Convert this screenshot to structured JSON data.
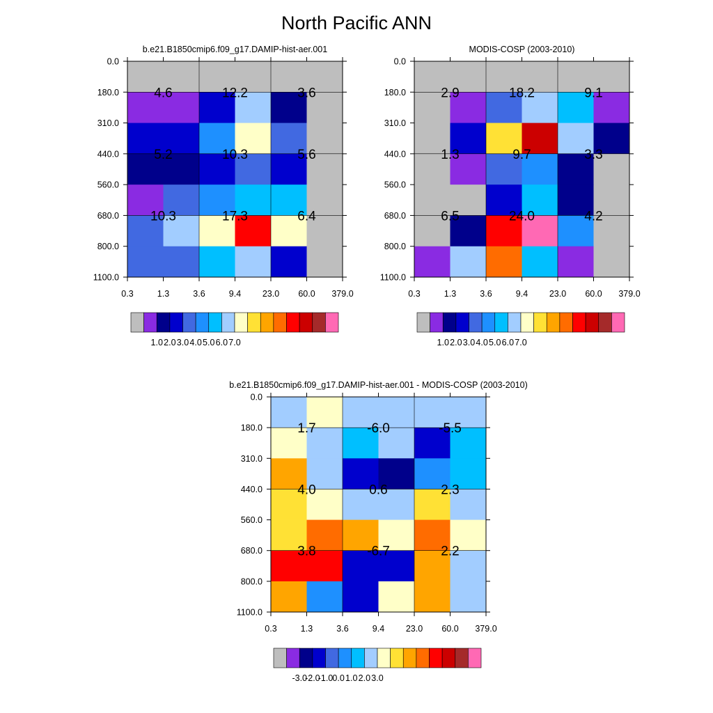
{
  "title": "North Pacific ANN",
  "palette": [
    "#bebebe",
    "#8a2be2",
    "#00008b",
    "#0000cd",
    "#4169e1",
    "#1e90ff",
    "#00bfff",
    "#a2cdff",
    "#ffffc8",
    "#ffe135",
    "#ffa500",
    "#ff6c00",
    "#ff0000",
    "#cc0000",
    "#a52a2a",
    "#ff69b4"
  ],
  "chart_data": [
    {
      "type": "heatmap",
      "title": "b.e21.B1850cmip6.f09_g17.DAMIP-hist-aer.001",
      "x_ticks": [
        "0.3",
        "1.3",
        "3.6",
        "9.4",
        "23.0",
        "60.0",
        "379.0"
      ],
      "y_ticks": [
        "0.0",
        "180.0",
        "310.0",
        "440.0",
        "560.0",
        "680.0",
        "800.0",
        "1100.0"
      ],
      "cell_colors": [
        [
          0,
          0,
          0,
          0,
          0,
          0
        ],
        [
          1,
          1,
          3,
          7,
          2,
          0
        ],
        [
          3,
          3,
          5,
          8,
          4,
          0
        ],
        [
          2,
          2,
          3,
          4,
          3,
          0
        ],
        [
          1,
          4,
          5,
          6,
          6,
          0
        ],
        [
          4,
          7,
          8,
          12,
          8,
          0
        ],
        [
          4,
          4,
          6,
          7,
          3,
          0
        ]
      ],
      "block_totals": [
        {
          "row": 1,
          "col": 0,
          "value": "4.6"
        },
        {
          "row": 1,
          "col": 1,
          "value": "12.2"
        },
        {
          "row": 1,
          "col": 2,
          "value": "3.6"
        },
        {
          "row": 3,
          "col": 0,
          "value": "5.2"
        },
        {
          "row": 3,
          "col": 1,
          "value": "10.3"
        },
        {
          "row": 3,
          "col": 2,
          "value": "5.6"
        },
        {
          "row": 5,
          "col": 0,
          "value": "10.3"
        },
        {
          "row": 5,
          "col": 1,
          "value": "17.3"
        },
        {
          "row": 5,
          "col": 2,
          "value": "6.4"
        }
      ],
      "colorbar": {
        "colors": [
          "#bebebe",
          "#8a2be2",
          "#00008b",
          "#0000cd",
          "#4169e1",
          "#1e90ff",
          "#00bfff",
          "#a2cdff",
          "#ffffc8",
          "#ffe135",
          "#ffa500",
          "#ff6c00",
          "#ff0000",
          "#cc0000",
          "#a52a2a",
          "#ff69b4"
        ],
        "labels": [
          "1.0",
          "2.0",
          "3.0",
          "4.0",
          "5.0",
          "6.0",
          "7.0"
        ]
      }
    },
    {
      "type": "heatmap",
      "title": "MODIS-COSP (2003-2010)",
      "x_ticks": [
        "0.3",
        "1.3",
        "3.6",
        "9.4",
        "23.0",
        "60.0",
        "379.0"
      ],
      "y_ticks": [
        "0.0",
        "180.0",
        "310.0",
        "440.0",
        "560.0",
        "680.0",
        "800.0",
        "1100.0"
      ],
      "cell_colors": [
        [
          0,
          0,
          0,
          0,
          0,
          0
        ],
        [
          0,
          1,
          4,
          7,
          6,
          1
        ],
        [
          0,
          3,
          9,
          13,
          7,
          2
        ],
        [
          0,
          1,
          4,
          5,
          2,
          0
        ],
        [
          0,
          0,
          3,
          6,
          2,
          0
        ],
        [
          0,
          2,
          12,
          15,
          5,
          0
        ],
        [
          1,
          7,
          11,
          6,
          1,
          0
        ]
      ],
      "block_totals": [
        {
          "row": 1,
          "col": 0,
          "value": "2.9"
        },
        {
          "row": 1,
          "col": 1,
          "value": "18.2"
        },
        {
          "row": 1,
          "col": 2,
          "value": "9.1"
        },
        {
          "row": 3,
          "col": 0,
          "value": "1.3"
        },
        {
          "row": 3,
          "col": 1,
          "value": "9.7"
        },
        {
          "row": 3,
          "col": 2,
          "value": "3.3"
        },
        {
          "row": 5,
          "col": 0,
          "value": "6.5"
        },
        {
          "row": 5,
          "col": 1,
          "value": "24.0"
        },
        {
          "row": 5,
          "col": 2,
          "value": "4.2"
        }
      ],
      "colorbar": {
        "colors": [
          "#bebebe",
          "#8a2be2",
          "#00008b",
          "#0000cd",
          "#4169e1",
          "#1e90ff",
          "#00bfff",
          "#a2cdff",
          "#ffffc8",
          "#ffe135",
          "#ffa500",
          "#ff6c00",
          "#ff0000",
          "#cc0000",
          "#a52a2a",
          "#ff69b4"
        ],
        "labels": [
          "1.0",
          "2.0",
          "3.0",
          "4.0",
          "5.0",
          "6.0",
          "7.0"
        ]
      }
    },
    {
      "type": "heatmap",
      "title": "b.e21.B1850cmip6.f09_g17.DAMIP-hist-aer.001 - MODIS-COSP (2003-2010)",
      "x_ticks": [
        "0.3",
        "1.3",
        "3.6",
        "9.4",
        "23.0",
        "60.0",
        "379.0"
      ],
      "y_ticks": [
        "0.0",
        "180.0",
        "310.0",
        "440.0",
        "560.0",
        "680.0",
        "800.0",
        "1100.0"
      ],
      "cell_colors": [
        [
          7,
          8,
          7,
          7,
          7,
          7
        ],
        [
          8,
          7,
          6,
          7,
          3,
          6
        ],
        [
          10,
          7,
          3,
          2,
          5,
          6
        ],
        [
          9,
          8,
          7,
          7,
          9,
          7
        ],
        [
          9,
          11,
          10,
          8,
          11,
          8
        ],
        [
          12,
          12,
          3,
          3,
          10,
          7
        ],
        [
          10,
          5,
          3,
          8,
          10,
          7
        ]
      ],
      "block_totals": [
        {
          "row": 1,
          "col": 0,
          "value": "1.7"
        },
        {
          "row": 1,
          "col": 1,
          "value": "-6.0"
        },
        {
          "row": 1,
          "col": 2,
          "value": "-5.5"
        },
        {
          "row": 3,
          "col": 0,
          "value": "4.0"
        },
        {
          "row": 3,
          "col": 1,
          "value": "0.6"
        },
        {
          "row": 3,
          "col": 2,
          "value": "2.3"
        },
        {
          "row": 5,
          "col": 0,
          "value": "3.8"
        },
        {
          "row": 5,
          "col": 1,
          "value": "-6.7"
        },
        {
          "row": 5,
          "col": 2,
          "value": "2.2"
        }
      ],
      "colorbar": {
        "colors": [
          "#bebebe",
          "#8a2be2",
          "#00008b",
          "#0000cd",
          "#4169e1",
          "#1e90ff",
          "#00bfff",
          "#a2cdff",
          "#ffffc8",
          "#ffe135",
          "#ffa500",
          "#ff6c00",
          "#ff0000",
          "#cc0000",
          "#a52a2a",
          "#ff69b4"
        ],
        "labels": [
          "-3.0",
          "-2.0",
          "-1.0",
          "0.0",
          "1.0",
          "2.0",
          "3.0"
        ]
      }
    }
  ]
}
